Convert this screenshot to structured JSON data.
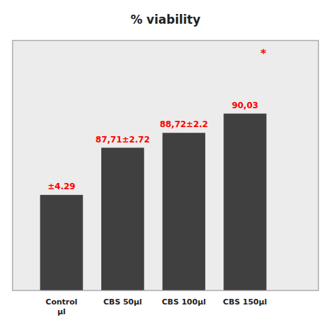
{
  "chart_data": {
    "type": "bar",
    "title": "% viability",
    "categories": [
      "Control\nμl",
      "CBS 50μl",
      "CBS 100μl",
      "CBS 150μl"
    ],
    "values": [
      84.5,
      87.71,
      88.72,
      90.03
    ],
    "color": "#404040",
    "annotations": [
      "±4.29",
      "87,71±2.72",
      "88,72±2.2",
      "90,03",
      "*"
    ],
    "ylim": [
      78,
      95
    ],
    "grid": false,
    "tick_labels": "x"
  }
}
